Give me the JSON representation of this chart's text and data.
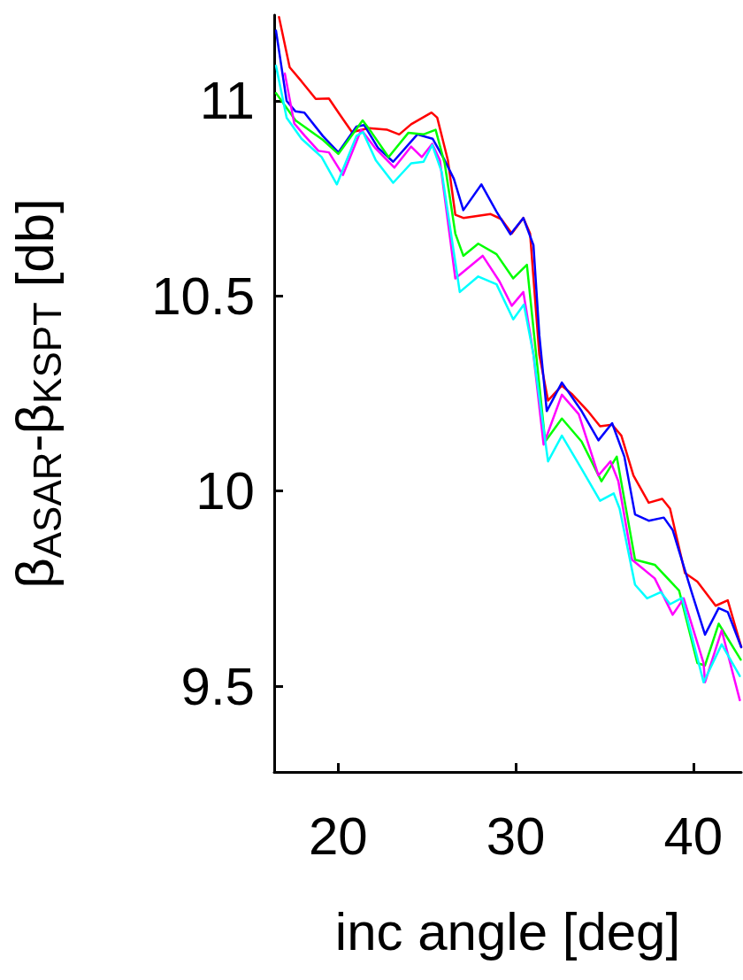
{
  "chart_data": {
    "type": "line",
    "xlabel": "inc angle [deg]",
    "ylabel": "β$_{ASAR}$-β$_{KSPT}$ [db]",
    "xlim": [
      16.4,
      42.7
    ],
    "xticks": [
      20,
      30,
      40
    ],
    "ylim": [
      9.28,
      11.22
    ],
    "yticks": [
      9.5,
      10,
      10.5,
      11
    ],
    "grid": false,
    "marker": "none",
    "line_style": "solid",
    "series": [
      {
        "color": "#ff0000",
        "x": [
          16.67,
          17.27,
          17.94,
          18.74,
          19.48,
          20.08,
          20.78,
          21.72,
          22.77,
          23.44,
          24.11,
          25.26,
          25.58,
          26.18,
          26.6,
          27.05,
          28.59,
          29.19,
          29.78,
          30.43,
          30.81,
          31.33,
          31.82,
          32.6,
          33.2,
          34.06,
          34.75,
          35.43,
          35.95,
          36.63,
          37.49,
          38.25,
          38.69,
          39.53,
          40.23,
          41.26,
          41.94,
          42.7
        ],
        "values": [
          11.215,
          11.086,
          11.05,
          11.005,
          11.006,
          10.966,
          10.92,
          10.93,
          10.926,
          10.914,
          10.94,
          10.97,
          10.957,
          10.848,
          10.708,
          10.7,
          10.71,
          10.697,
          10.66,
          10.7,
          10.66,
          10.35,
          10.232,
          10.27,
          10.247,
          10.205,
          10.166,
          10.17,
          10.142,
          10.04,
          9.97,
          9.98,
          9.955,
          9.79,
          9.768,
          9.706,
          9.72,
          9.6
        ]
      },
      {
        "color": "#0000ff",
        "x": [
          16.5,
          17.1,
          17.6,
          18.1,
          19.14,
          20.01,
          21.03,
          21.47,
          22.24,
          23.1,
          24.46,
          25.32,
          26.0,
          26.52,
          27.05,
          28.07,
          28.92,
          29.7,
          30.43,
          31.0,
          31.33,
          31.75,
          32.6,
          33.71,
          34.66,
          35.43,
          36.12,
          36.72,
          37.49,
          38.34,
          38.84,
          39.88,
          40.66,
          41.43,
          41.94,
          42.7
        ],
        "values": [
          11.18,
          11.0,
          10.973,
          10.97,
          10.91,
          10.868,
          10.934,
          10.938,
          10.88,
          10.844,
          10.914,
          10.903,
          10.848,
          10.8,
          10.72,
          10.786,
          10.716,
          10.658,
          10.7,
          10.63,
          10.4,
          10.205,
          10.278,
          10.205,
          10.13,
          10.174,
          10.088,
          9.94,
          9.924,
          9.932,
          9.9,
          9.745,
          9.632,
          9.7,
          9.69,
          9.6
        ]
      },
      {
        "color": "#00ff00",
        "x": [
          16.5,
          17.6,
          19.14,
          20.01,
          21.38,
          21.9,
          22.84,
          23.95,
          24.8,
          25.49,
          26.0,
          26.6,
          27.05,
          27.89,
          28.92,
          29.86,
          30.63,
          31.15,
          31.66,
          32.6,
          33.71,
          34.83,
          35.69,
          36.72,
          37.83,
          39.2,
          40.23,
          40.66,
          41.43,
          42.67
        ],
        "values": [
          11.02,
          10.95,
          10.9,
          10.864,
          10.95,
          10.918,
          10.856,
          10.918,
          10.914,
          10.926,
          10.84,
          10.66,
          10.603,
          10.634,
          10.607,
          10.545,
          10.58,
          10.35,
          10.127,
          10.186,
          10.127,
          10.025,
          10.088,
          9.824,
          9.811,
          9.745,
          9.559,
          9.553,
          9.66,
          9.568
        ]
      },
      {
        "color": "#ff00ff",
        "x": [
          17.0,
          17.53,
          18.13,
          18.89,
          19.48,
          20.27,
          21.3,
          22.07,
          23.17,
          24.11,
          24.71,
          25.3,
          25.73,
          26.6,
          28.14,
          29.09,
          29.78,
          30.43,
          31.0,
          31.57,
          32.6,
          33.55,
          34.66,
          35.34,
          35.78,
          36.55,
          37.83,
          38.84,
          39.46,
          40.58,
          40.66,
          41.6,
          42.62
        ],
        "values": [
          11.07,
          10.942,
          10.91,
          10.872,
          10.868,
          10.81,
          10.926,
          10.88,
          10.829,
          10.883,
          10.856,
          10.89,
          10.848,
          10.545,
          10.603,
          10.537,
          10.475,
          10.51,
          10.35,
          10.119,
          10.247,
          10.197,
          10.04,
          10.076,
          10.025,
          9.824,
          9.776,
          9.683,
          9.725,
          9.559,
          9.51,
          9.643,
          9.464
        ]
      },
      {
        "color": "#00ffff",
        "x": [
          16.5,
          17.1,
          17.94,
          19.07,
          19.93,
          21.03,
          21.4,
          22.12,
          23.1,
          24.11,
          24.81,
          25.3,
          25.84,
          26.85,
          27.89,
          28.92,
          29.86,
          30.46,
          31.0,
          31.82,
          32.6,
          33.71,
          34.75,
          35.52,
          35.85,
          36.72,
          37.4,
          38.17,
          38.69,
          39.37,
          40.58,
          41.6,
          42.62
        ],
        "values": [
          11.09,
          10.957,
          10.903,
          10.856,
          10.786,
          10.91,
          10.92,
          10.848,
          10.79,
          10.84,
          10.844,
          10.887,
          10.817,
          10.51,
          10.55,
          10.53,
          10.44,
          10.478,
          10.35,
          10.076,
          10.142,
          10.057,
          9.975,
          9.994,
          9.955,
          9.76,
          9.725,
          9.741,
          9.71,
          9.726,
          9.51,
          9.607,
          9.526
        ]
      }
    ]
  }
}
